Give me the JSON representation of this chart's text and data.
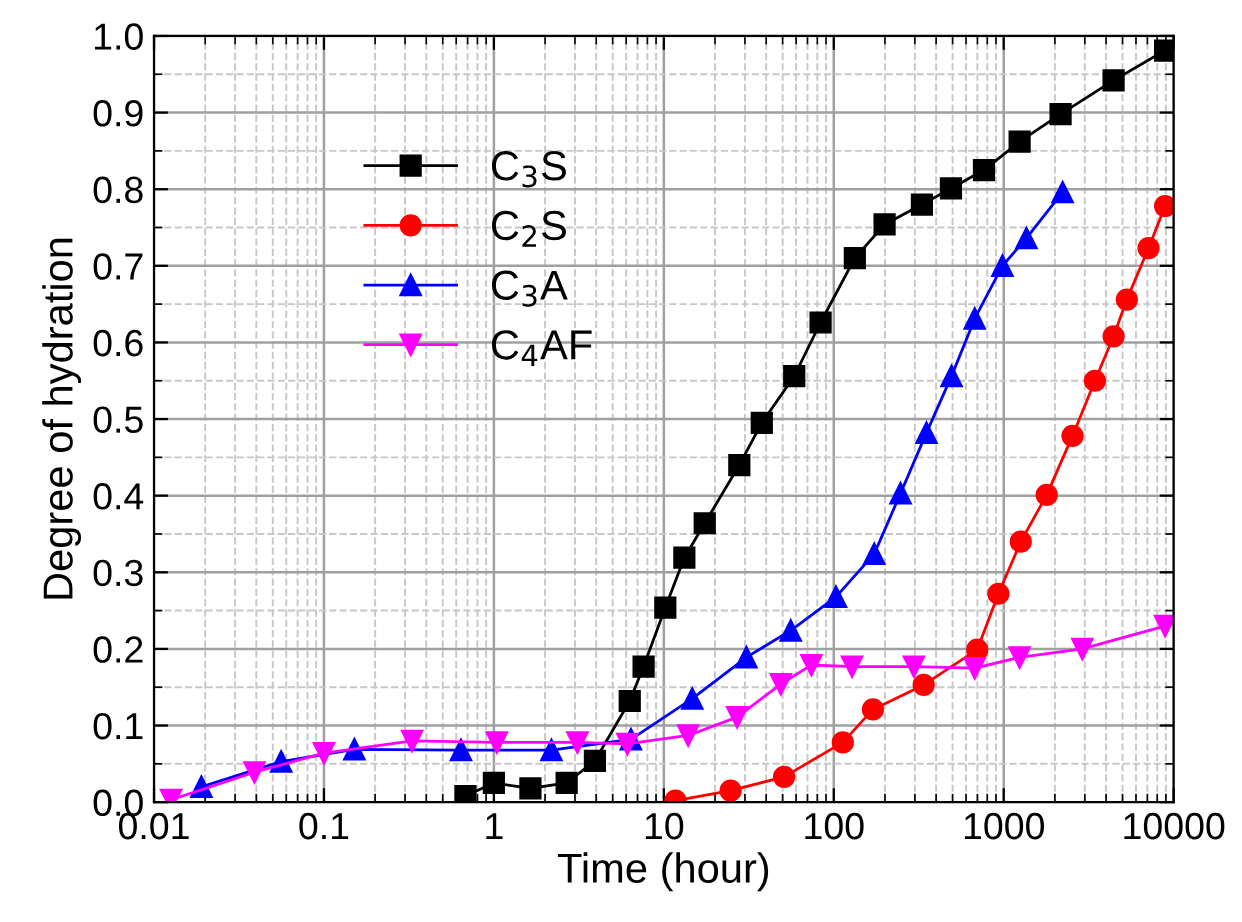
{
  "chart_data": {
    "type": "line",
    "xlabel": "Time (hour)",
    "ylabel": "Degree of hydration",
    "log": "x",
    "xlim": [
      0.01,
      10000
    ],
    "xticks": [
      0.01,
      0.1,
      1,
      10,
      100,
      1000,
      10000
    ],
    "ylim": [
      0,
      1.0
    ],
    "yticks": [
      {
        "value": 0,
        "label": "0.0"
      },
      {
        "value": 0.1,
        "label": "0.1"
      },
      {
        "value": 0.2,
        "label": "0.2"
      },
      {
        "value": 0.3,
        "label": "0.3"
      },
      {
        "value": 0.4,
        "label": "0.4"
      },
      {
        "value": 0.5,
        "label": "0.5"
      },
      {
        "value": 0.6,
        "label": "0.6"
      },
      {
        "value": 0.7,
        "label": "0.7"
      },
      {
        "value": 0.8,
        "label": "0.8"
      },
      {
        "value": 0.9,
        "label": "0.9"
      },
      {
        "value": 1.0,
        "label": "1.0"
      }
    ],
    "grid": true,
    "legend": "top left",
    "line_style": "solid",
    "series": [
      {
        "name": "C$_{3}$S",
        "color": "#000000",
        "marker": "square",
        "x": [
          0.68,
          1.0,
          1.64,
          2.68,
          3.93,
          6.3,
          7.6,
          10.2,
          13.2,
          17.4,
          27.8,
          37.7,
          58.5,
          83.6,
          133,
          199,
          330,
          489,
          765,
          1240,
          2160,
          4430,
          8900
        ],
        "values": [
          0.008,
          0.025,
          0.018,
          0.025,
          0.054,
          0.132,
          0.177,
          0.254,
          0.319,
          0.364,
          0.44,
          0.495,
          0.556,
          0.626,
          0.71,
          0.754,
          0.78,
          0.801,
          0.825,
          0.862,
          0.898,
          0.942,
          0.981
        ]
      },
      {
        "name": "C$_{2}$S",
        "color": "#ff0000",
        "marker": "circle",
        "x": [
          11.7,
          24.7,
          51,
          113,
          170,
          338,
          698,
          930,
          1260,
          1790,
          2540,
          3440,
          4430,
          5300,
          7110,
          8900
        ],
        "values": [
          0.002,
          0.015,
          0.033,
          0.078,
          0.121,
          0.153,
          0.199,
          0.272,
          0.34,
          0.401,
          0.478,
          0.55,
          0.608,
          0.656,
          0.723,
          0.778
        ]
      },
      {
        "name": "C$_{3}$A",
        "color": "#0000ff",
        "marker": "triangle",
        "x": [
          0.019,
          0.056,
          0.151,
          0.64,
          2.18,
          6.4,
          14.7,
          30.6,
          55.8,
          103,
          173,
          247,
          351,
          493,
          675,
          982,
          1360,
          2220
        ],
        "values": [
          0.02,
          0.053,
          0.069,
          0.068,
          0.068,
          0.082,
          0.135,
          0.189,
          0.224,
          0.268,
          0.324,
          0.403,
          0.482,
          0.556,
          0.631,
          0.7,
          0.736,
          0.796
        ]
      },
      {
        "name": "C$_{4}$AF",
        "color": "#ff00ff",
        "marker": "triangle_down",
        "x": [
          0.0126,
          0.039,
          0.1,
          0.33,
          1.04,
          3.1,
          6.1,
          13.9,
          27,
          48.8,
          73.8,
          128,
          296,
          675,
          1240,
          2900,
          8900
        ],
        "values": [
          0.003,
          0.039,
          0.064,
          0.08,
          0.078,
          0.078,
          0.076,
          0.087,
          0.111,
          0.154,
          0.179,
          0.177,
          0.177,
          0.175,
          0.189,
          0.2,
          0.23
        ]
      }
    ]
  }
}
